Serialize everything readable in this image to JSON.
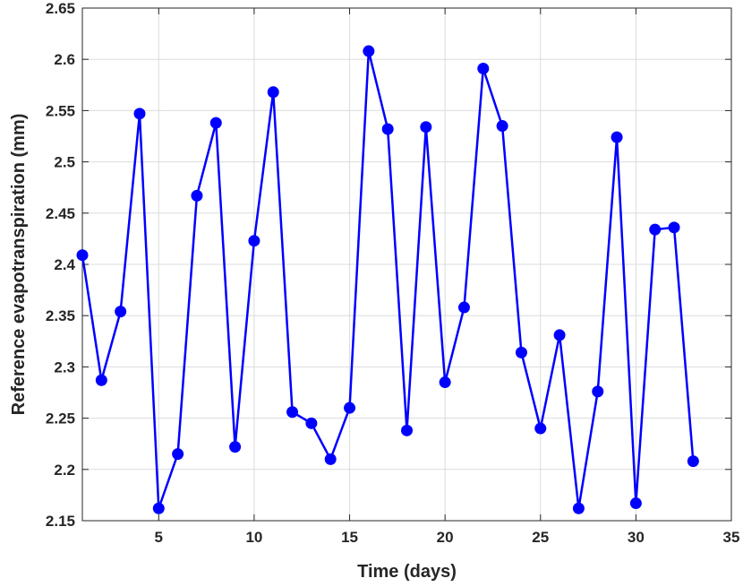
{
  "chart_data": {
    "type": "line",
    "xlabel": "Time (days)",
    "ylabel": "Reference evapotranspiration (mm)",
    "xlim": [
      1,
      35
    ],
    "ylim": [
      2.15,
      2.65
    ],
    "xticks": [
      5,
      10,
      15,
      20,
      25,
      30,
      35
    ],
    "xtick_labels": [
      "5",
      "10",
      "15",
      "20",
      "25",
      "30",
      "35"
    ],
    "yticks": [
      2.15,
      2.2,
      2.25,
      2.3,
      2.35,
      2.4,
      2.45,
      2.5,
      2.55,
      2.6,
      2.65
    ],
    "ytick_labels": [
      "2.15",
      "2.2",
      "2.25",
      "2.3",
      "2.35",
      "2.4",
      "2.45",
      "2.5",
      "2.55",
      "2.6",
      "2.65"
    ],
    "grid": true,
    "series": [
      {
        "color": "#0000ff",
        "marker": "circle",
        "x": [
          1,
          2,
          3,
          4,
          5,
          6,
          7,
          8,
          9,
          10,
          11,
          12,
          13,
          14,
          15,
          16,
          17,
          18,
          19,
          20,
          21,
          22,
          23,
          24,
          25,
          26,
          27,
          28,
          29,
          30,
          31,
          32,
          33
        ],
        "values": [
          2.409,
          2.287,
          2.354,
          2.547,
          2.162,
          2.215,
          2.467,
          2.538,
          2.222,
          2.423,
          2.568,
          2.256,
          2.245,
          2.21,
          2.26,
          2.608,
          2.532,
          2.238,
          2.534,
          2.285,
          2.358,
          2.591,
          2.535,
          2.314,
          2.24,
          2.331,
          2.162,
          2.276,
          2.524,
          2.167,
          2.434,
          2.436,
          2.208
        ]
      }
    ]
  }
}
